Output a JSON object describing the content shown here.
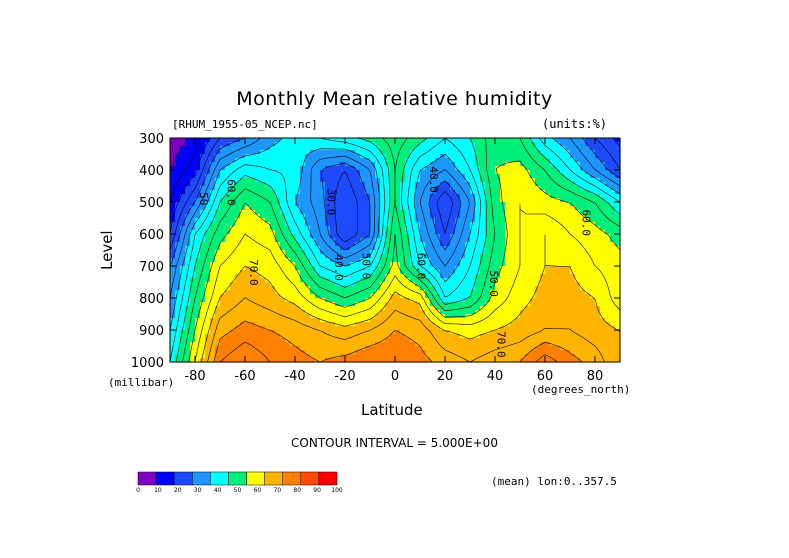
{
  "title": "Monthly Mean relative humidity",
  "source_label": "[RHUM_1955-05_NCEP.nc]",
  "units_label": "(units:%)",
  "y_unit_label": "(millibar)",
  "x_unit_label": "(degrees_north)",
  "interval_text": "CONTOUR INTERVAL = 5.000E+00",
  "mean_text": "(mean) lon:0..357.5",
  "chart_data": {
    "type": "heatmap",
    "title": "Monthly Mean relative humidity",
    "xlabel": "Latitude",
    "ylabel": "Level",
    "x_ticks": [
      -80,
      -60,
      -40,
      -20,
      0,
      20,
      40,
      60,
      80
    ],
    "x_tick_labels": [
      "-80",
      "-60",
      "-40",
      "-20",
      "0",
      "20",
      "40",
      "60",
      "80"
    ],
    "y_ticks": [
      300,
      400,
      500,
      600,
      700,
      800,
      900,
      1000
    ],
    "y_tick_labels": [
      "300",
      "400",
      "500",
      "600",
      "700",
      "800",
      "900",
      "1000"
    ],
    "xlim": [
      -90,
      90
    ],
    "ylim": [
      1000,
      300
    ],
    "x": [
      -90,
      -80,
      -70,
      -60,
      -50,
      -40,
      -30,
      -20,
      -10,
      0,
      10,
      20,
      30,
      40,
      50,
      60,
      70,
      80,
      90
    ],
    "y": [
      300,
      400,
      500,
      600,
      700,
      800,
      900,
      1000
    ],
    "z": [
      [
        5,
        12,
        25,
        30,
        38,
        42,
        45,
        48,
        52,
        58,
        52,
        45,
        50,
        58,
        55,
        42,
        35,
        25,
        18
      ],
      [
        10,
        18,
        40,
        48,
        45,
        44,
        30,
        25,
        35,
        55,
        40,
        35,
        45,
        60,
        62,
        55,
        45,
        35,
        25
      ],
      [
        15,
        30,
        50,
        60,
        55,
        40,
        32,
        20,
        30,
        55,
        35,
        20,
        35,
        58,
        65,
        62,
        60,
        55,
        45
      ],
      [
        20,
        45,
        58,
        65,
        62,
        48,
        35,
        20,
        30,
        60,
        40,
        25,
        40,
        55,
        65,
        70,
        65,
        62,
        58
      ],
      [
        30,
        50,
        65,
        70,
        68,
        60,
        45,
        40,
        45,
        62,
        45,
        35,
        45,
        58,
        65,
        70,
        70,
        65,
        62
      ],
      [
        35,
        55,
        70,
        75,
        72,
        68,
        60,
        55,
        60,
        72,
        68,
        45,
        50,
        62,
        68,
        72,
        72,
        70,
        62
      ],
      [
        40,
        60,
        78,
        82,
        80,
        78,
        75,
        72,
        75,
        80,
        78,
        70,
        68,
        70,
        72,
        75,
        75,
        72,
        70
      ],
      [
        45,
        65,
        85,
        90,
        85,
        82,
        80,
        82,
        85,
        85,
        82,
        78,
        75,
        78,
        80,
        88,
        82,
        78,
        70
      ]
    ],
    "contour_interval": 5,
    "contour_labels": [
      {
        "text": "50",
        "x": -78,
        "y": 490
      },
      {
        "text": "60.0",
        "x": -67,
        "y": 470
      },
      {
        "text": "70.0",
        "x": -58,
        "y": 720
      },
      {
        "text": "30.0",
        "x": -27,
        "y": 500
      },
      {
        "text": "40.0",
        "x": -24,
        "y": 705
      },
      {
        "text": "50.0",
        "x": -13,
        "y": 700
      },
      {
        "text": "60.0",
        "x": 9,
        "y": 700
      },
      {
        "text": "40.0",
        "x": 14,
        "y": 430
      },
      {
        "text": "50.0",
        "x": 38,
        "y": 755
      },
      {
        "text": "70.0",
        "x": 41,
        "y": 945
      },
      {
        "text": "60.0",
        "x": 75,
        "y": 565
      }
    ],
    "colorbar": {
      "ticks": [
        "0",
        "10",
        "20",
        "30",
        "40",
        "50",
        "60",
        "70",
        "80",
        "90",
        "100"
      ],
      "colors": [
        "#8000c0",
        "#0000ff",
        "#1e4bff",
        "#1e96ff",
        "#00ffff",
        "#00ee7a",
        "#ffff00",
        "#ffb400",
        "#ff8000",
        "#ff4b00",
        "#ff0000"
      ]
    },
    "grid": false
  }
}
